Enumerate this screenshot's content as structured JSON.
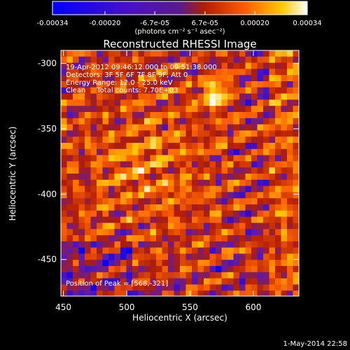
{
  "colorbar": {
    "tick_labels": [
      "-0.00034",
      "-0.00020",
      "-6.7e-05",
      "6.7e-05",
      "0.00020",
      "0.00034"
    ],
    "tick_values": [
      -0.00034,
      -0.0002,
      -6.7e-05,
      6.7e-05,
      0.0002,
      0.00034
    ],
    "range": [
      -0.00034,
      0.00034
    ],
    "units": "(photons cm⁻² s⁻¹ asec⁻²)",
    "colormap": [
      "#0000ff",
      "#5a1ab4",
      "#b41e00",
      "#ff6400",
      "#ffc800",
      "#ffffff"
    ]
  },
  "chart_data": {
    "type": "heatmap",
    "title": "Reconstructed RHESSI Image",
    "xlabel": "Heliocentric X (arcsec)",
    "ylabel": "Heliocentric Y (arcsec)",
    "xlim": [
      448,
      636
    ],
    "ylim": [
      -478,
      -290
    ],
    "x_ticks": [
      450,
      500,
      550,
      600
    ],
    "y_ticks": [
      -300,
      -350,
      -400,
      -450
    ],
    "x_tick_labels": [
      "450",
      "500",
      "550",
      "600"
    ],
    "y_tick_labels": [
      "-300",
      "-350",
      "-400",
      "-450"
    ],
    "annotations": [
      "19-Apr-2012 09:46:12.000 to 09:51:38.000",
      "Detectors: 3F 5F 6F 7F 8F 9F, Att 0",
      "Energy Range: 12.0 - 25.0 keV",
      "Clean     Total counts: 7.70E+03"
    ],
    "peak_text": "Position of Peak = [568,-321]",
    "peak_position": [
      568,
      -321
    ],
    "grid": false
  },
  "footer": {
    "timestamp": "1-May-2014 22:58"
  }
}
